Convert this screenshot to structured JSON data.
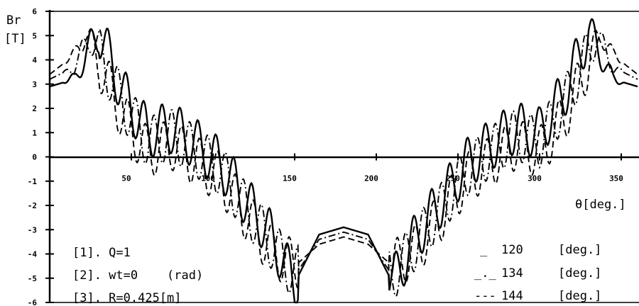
{
  "chart_data": {
    "type": "line",
    "ylabel_line1": "Br",
    "ylabel_line2": "[T]",
    "xlabel": "θ[deg.]",
    "xlim": [
      0,
      360
    ],
    "ylim": [
      -6,
      6
    ],
    "x_ticks": [
      50,
      100,
      150,
      200,
      250,
      300,
      350
    ],
    "y_ticks": [
      6,
      5,
      4,
      3,
      2,
      1,
      0,
      -1,
      -2,
      -3,
      -4,
      -5,
      -6
    ],
    "grid": false,
    "legend_position": "bottom-right",
    "parameters": [
      "[1]. Q=1",
      "[2]. wt=0    (rad)",
      "[3]. R=0.425[m]"
    ],
    "legend": [
      {
        "marker": "_",
        "value": "120",
        "unit": "[deg.]"
      },
      {
        "marker": "_._",
        "value": "134",
        "unit": "[deg.]"
      },
      {
        "marker": "---",
        "value": "144",
        "unit": "[deg.]"
      }
    ],
    "series": [
      {
        "style": "solid",
        "x": [
          0,
          15,
          30,
          45,
          60,
          75,
          90,
          105,
          120,
          135,
          150,
          165,
          180,
          195,
          210,
          225,
          240,
          255,
          270,
          285,
          300,
          315,
          330,
          345,
          360
        ],
        "y": [
          2.9,
          3.2,
          5.2,
          2.6,
          1.0,
          1.2,
          0.5,
          -0.3,
          -1.8,
          -3.2,
          -5.2,
          -3.2,
          -2.9,
          -3.2,
          -5.2,
          -3.2,
          -1.8,
          -0.3,
          0.5,
          1.2,
          1.0,
          2.6,
          5.2,
          3.2,
          2.9
        ]
      },
      {
        "style": "dash-dot",
        "x": [
          0,
          15,
          25,
          45,
          60,
          75,
          90,
          105,
          120,
          135,
          150,
          165,
          180,
          195,
          210,
          225,
          240,
          255,
          270,
          285,
          300,
          315,
          335,
          345,
          360
        ],
        "y": [
          3.2,
          3.7,
          5.0,
          2.2,
          0.6,
          0.9,
          0.2,
          -0.6,
          -2.1,
          -3.5,
          -4.9,
          -3.4,
          -3.1,
          -3.4,
          -4.9,
          -3.5,
          -2.1,
          -0.6,
          0.2,
          0.9,
          0.6,
          2.2,
          5.0,
          3.7,
          3.2
        ]
      },
      {
        "style": "dashed",
        "x": [
          0,
          15,
          22,
          45,
          60,
          75,
          90,
          105,
          120,
          135,
          150,
          165,
          180,
          195,
          210,
          225,
          240,
          255,
          270,
          285,
          300,
          315,
          338,
          345,
          360
        ],
        "y": [
          3.4,
          4.2,
          5.1,
          1.6,
          0.2,
          0.5,
          -0.2,
          -0.9,
          -2.4,
          -3.8,
          -4.5,
          -3.6,
          -3.3,
          -3.6,
          -4.5,
          -3.8,
          -2.4,
          -0.9,
          -0.2,
          0.5,
          0.2,
          1.6,
          5.1,
          4.2,
          3.4
        ]
      }
    ]
  }
}
